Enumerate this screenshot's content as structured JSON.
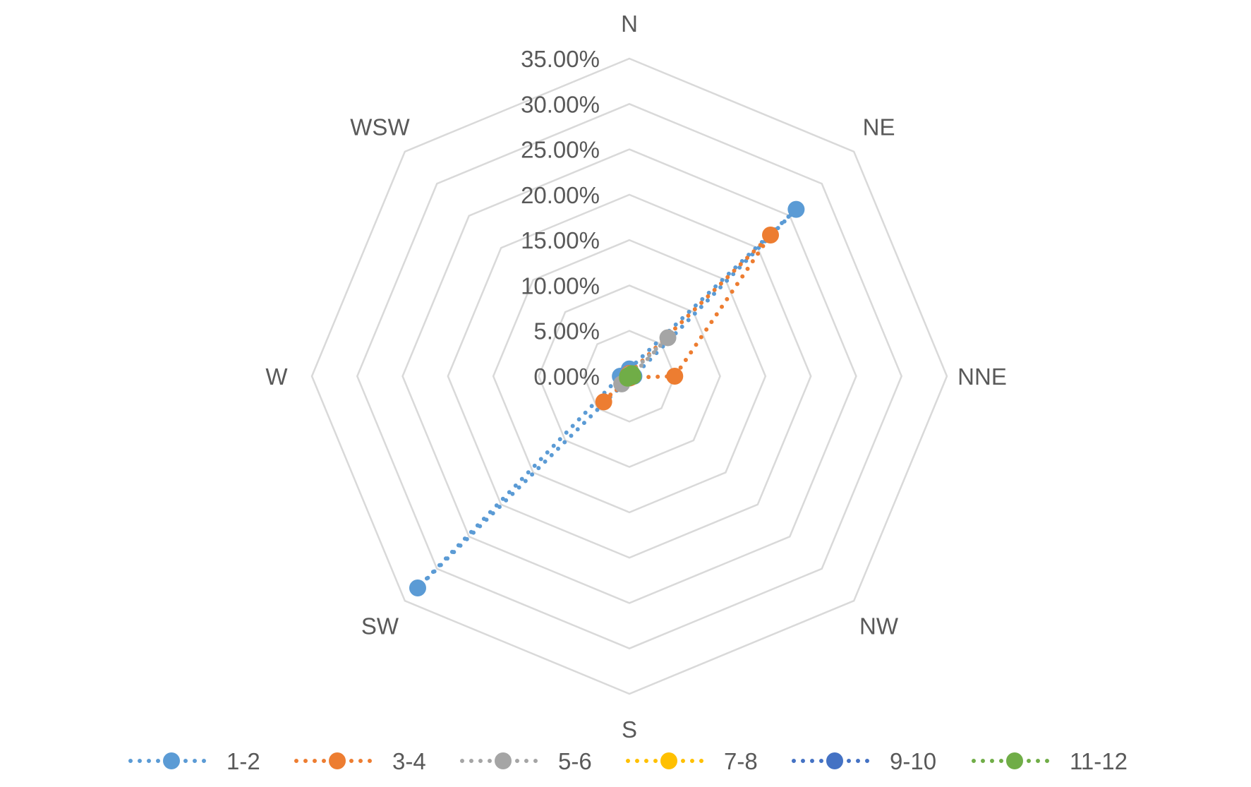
{
  "chart_data": {
    "type": "radar",
    "categories": [
      "N",
      "NE",
      "NNE",
      "NW",
      "S",
      "SW",
      "W",
      "WSW"
    ],
    "r_ticks": [
      "0.00%",
      "5.00%",
      "10.00%",
      "15.00%",
      "20.00%",
      "25.00%",
      "30.00%",
      "35.00%"
    ],
    "r_range": [
      0,
      0.35
    ],
    "grid": true,
    "legend_position": "bottom",
    "line_style": "dotted",
    "series": [
      {
        "name": "1-2",
        "color": "#5b9bd5",
        "values": [
          0.008,
          0.26,
          0.005,
          0.002,
          0.002,
          0.33,
          0.01,
          0.002
        ]
      },
      {
        "name": "3-4",
        "color": "#ed7d31",
        "values": [
          0.003,
          0.22,
          0.05,
          0.002,
          0.002,
          0.04,
          0.002,
          0.002
        ]
      },
      {
        "name": "5-6",
        "color": "#a5a5a5",
        "values": [
          0.002,
          0.06,
          0.002,
          0.001,
          0.001,
          0.012,
          0.001,
          0.001
        ]
      },
      {
        "name": "7-8",
        "color": "#ffc000",
        "values": [
          0.001,
          0.001,
          0.001,
          0.001,
          0.001,
          0.001,
          0.001,
          0.001
        ]
      },
      {
        "name": "9-10",
        "color": "#4472c4",
        "values": [
          0.001,
          0.002,
          0.001,
          0.001,
          0.001,
          0.001,
          0.001,
          0.001
        ]
      },
      {
        "name": "11-12",
        "color": "#70ad47",
        "values": [
          0.001,
          0.004,
          0.004,
          0.001,
          0.001,
          0.003,
          0.002,
          0.001
        ]
      }
    ]
  }
}
